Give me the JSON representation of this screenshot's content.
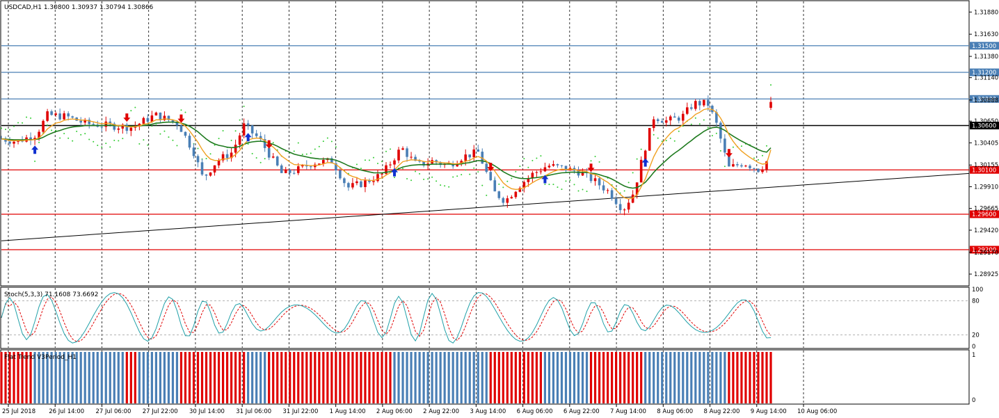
{
  "window": {
    "symbol_title": "USDCAD,H1  1.30800 1.30937 1.30794 1.30866"
  },
  "chart_data": {
    "type": "candlestick",
    "symbol": "USDCAD",
    "timeframe": "H1",
    "ohlc": {
      "open": 1.308,
      "high": 1.30937,
      "low": 1.30794,
      "close": 1.30866
    },
    "y_range": [
      1.288,
      1.32
    ],
    "price_ticks": [
      "1.31880",
      "1.31630",
      "1.31380",
      "1.31140",
      "1.30888",
      "1.30650",
      "1.30405",
      "1.30155",
      "1.29910",
      "1.29665",
      "1.29420",
      "1.29170",
      "1.28925"
    ],
    "time_labels": [
      "25 Jul 2018",
      "26 Jul 14:00",
      "27 Jul 06:00",
      "27 Jul 22:00",
      "30 Jul 14:00",
      "31 Jul 06:00",
      "31 Jul 22:00",
      "1 Aug 14:00",
      "2 Aug 06:00",
      "2 Aug 22:00",
      "3 Aug 14:00",
      "6 Aug 06:00",
      "6 Aug 22:00",
      "7 Aug 14:00",
      "8 Aug 06:00",
      "8 Aug 22:00",
      "9 Aug 14:00",
      "10 Aug 06:00"
    ],
    "horizontal_levels": [
      {
        "label": "1.31500",
        "price": 1.315,
        "color": "#4a7fb5"
      },
      {
        "label": "1.31200",
        "price": 1.312,
        "color": "#4a7fb5"
      },
      {
        "label": "1.30900",
        "price": 1.309,
        "color": "#4a7fb5"
      },
      {
        "label": "1.30600",
        "price": 1.306,
        "color": "#000000"
      },
      {
        "label": "1.30100",
        "price": 1.301,
        "color": "#e00000"
      },
      {
        "label": "1.29600",
        "price": 1.296,
        "color": "#e00000"
      },
      {
        "label": "1.29200",
        "price": 1.292,
        "color": "#e00000"
      }
    ],
    "current_price_label": "1.30866",
    "trendline": {
      "start_price": 1.293,
      "end_price": 1.3006
    },
    "close_path": [
      {
        "x": 0.0,
        "y": 1.3045
      },
      {
        "x": 0.02,
        "y": 1.3042
      },
      {
        "x": 0.045,
        "y": 1.305
      },
      {
        "x": 0.06,
        "y": 1.3072
      },
      {
        "x": 0.085,
        "y": 1.307
      },
      {
        "x": 0.11,
        "y": 1.3062
      },
      {
        "x": 0.14,
        "y": 1.306
      },
      {
        "x": 0.17,
        "y": 1.3058
      },
      {
        "x": 0.2,
        "y": 1.3072
      },
      {
        "x": 0.23,
        "y": 1.3062
      },
      {
        "x": 0.25,
        "y": 1.303
      },
      {
        "x": 0.262,
        "y": 1.3
      },
      {
        "x": 0.28,
        "y": 1.302
      },
      {
        "x": 0.3,
        "y": 1.303
      },
      {
        "x": 0.315,
        "y": 1.306
      },
      {
        "x": 0.335,
        "y": 1.3045
      },
      {
        "x": 0.35,
        "y": 1.3025
      },
      {
        "x": 0.365,
        "y": 1.3005
      },
      {
        "x": 0.385,
        "y": 1.301
      },
      {
        "x": 0.405,
        "y": 1.3018
      },
      {
        "x": 0.43,
        "y": 1.302
      },
      {
        "x": 0.45,
        "y": 1.299
      },
      {
        "x": 0.47,
        "y": 1.2995
      },
      {
        "x": 0.495,
        "y": 1.3005
      },
      {
        "x": 0.52,
        "y": 1.3035
      },
      {
        "x": 0.54,
        "y": 1.3015
      },
      {
        "x": 0.56,
        "y": 1.302
      },
      {
        "x": 0.58,
        "y": 1.3015
      },
      {
        "x": 0.6,
        "y": 1.3025
      },
      {
        "x": 0.62,
        "y": 1.303
      },
      {
        "x": 0.64,
        "y": 1.2985
      },
      {
        "x": 0.655,
        "y": 1.2975
      },
      {
        "x": 0.67,
        "y": 1.299
      },
      {
        "x": 0.69,
        "y": 1.3005
      },
      {
        "x": 0.71,
        "y": 1.3015
      },
      {
        "x": 0.73,
        "y": 1.3012
      },
      {
        "x": 0.75,
        "y": 1.3008
      },
      {
        "x": 0.77,
        "y": 1.2998
      },
      {
        "x": 0.79,
        "y": 1.2985
      },
      {
        "x": 0.808,
        "y": 1.2965
      },
      {
        "x": 0.822,
        "y": 1.2985
      },
      {
        "x": 0.835,
        "y": 1.303
      },
      {
        "x": 0.848,
        "y": 1.307
      },
      {
        "x": 0.865,
        "y": 1.3065
      },
      {
        "x": 0.885,
        "y": 1.307
      },
      {
        "x": 0.9,
        "y": 1.3085
      },
      {
        "x": 0.918,
        "y": 1.3085
      },
      {
        "x": 0.93,
        "y": 1.306
      },
      {
        "x": 0.945,
        "y": 1.3012
      },
      {
        "x": 0.965,
        "y": 1.3018
      },
      {
        "x": 0.985,
        "y": 1.301
      },
      {
        "x": 1.0,
        "y": 1.3025
      }
    ]
  },
  "stochastic": {
    "label": "Stoch(5,3,3) 71.1608 73.6692",
    "ticks": [
      "100",
      "80",
      "20",
      "0"
    ]
  },
  "flat_trend": {
    "label": "Flat Trend V3Period_H1",
    "ticks": [
      "1",
      "0"
    ],
    "colors": {
      "up": "#4a7fb5",
      "down": "#e00000"
    }
  },
  "colors": {
    "ma_fast": "#f0a020",
    "ma_slow": "#1e7a1e",
    "psar": "#33cc33",
    "bull_candle": "#e00000",
    "bear_candle": "#4a7fb5"
  }
}
